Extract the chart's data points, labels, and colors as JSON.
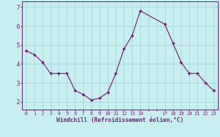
{
  "x": [
    0,
    1,
    2,
    3,
    4,
    5,
    6,
    7,
    8,
    9,
    10,
    11,
    12,
    13,
    14,
    17,
    18,
    19,
    20,
    21,
    22,
    23
  ],
  "y": [
    4.7,
    4.5,
    4.1,
    3.5,
    3.5,
    3.5,
    2.6,
    2.4,
    2.1,
    2.2,
    2.5,
    3.5,
    4.8,
    5.5,
    6.8,
    6.1,
    5.1,
    4.1,
    3.5,
    3.5,
    3.0,
    2.6
  ],
  "line_color": "#7B1E7A",
  "marker_color": "#7B1E7A",
  "bg_color": "#c8eef0",
  "grid_color": "#9fd4d8",
  "axis_color": "#7B1E7A",
  "tick_color": "#7B1E7A",
  "xlabel": "Windchill (Refroidissement éolien,°C)",
  "xlabel_color": "#7B1E7A",
  "yticks": [
    2,
    3,
    4,
    5,
    6,
    7
  ],
  "ylim": [
    1.6,
    7.3
  ],
  "xlim": [
    -0.5,
    23.5
  ]
}
